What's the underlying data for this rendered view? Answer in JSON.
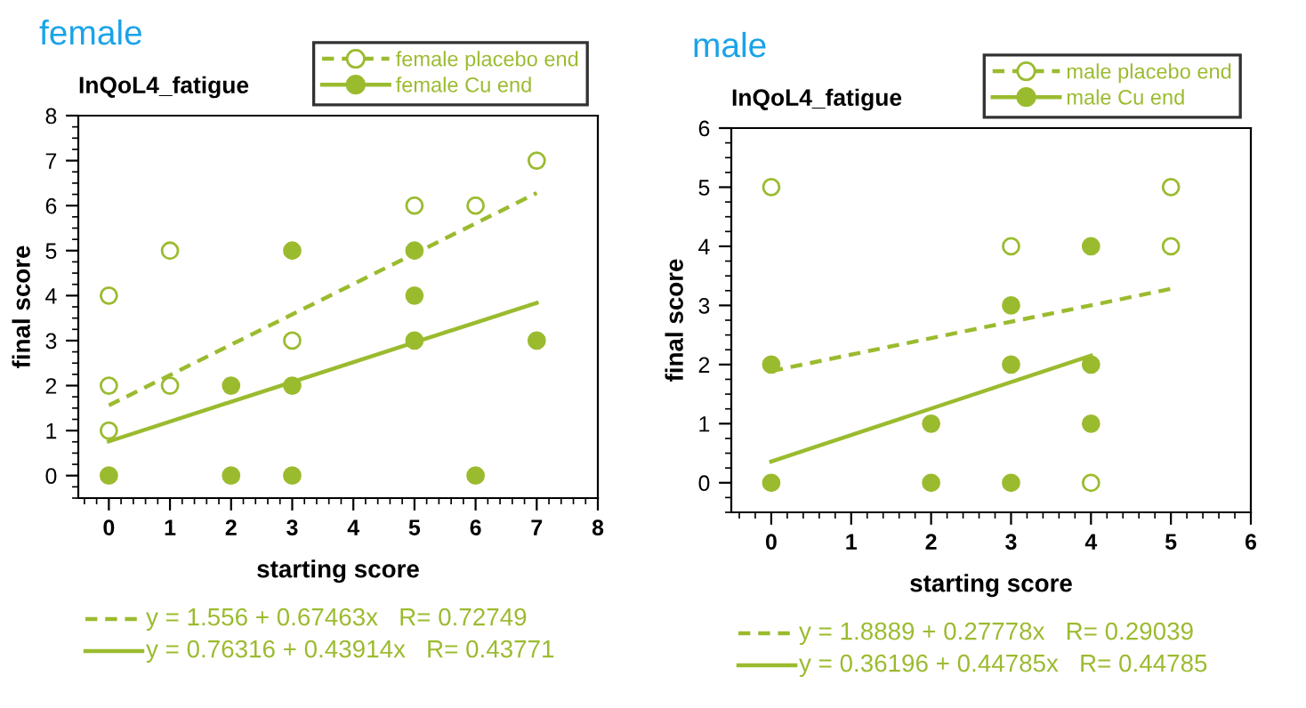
{
  "chart_data": [
    {
      "type": "scatter",
      "title": "female",
      "subtitle": "InQoL4_fatigue",
      "xlabel": "starting score",
      "ylabel": "final score",
      "xlim": [
        -0.5,
        8
      ],
      "ylim": [
        -0.5,
        8
      ],
      "xticks": [
        0,
        1,
        2,
        3,
        4,
        5,
        6,
        7,
        8
      ],
      "yticks": [
        0,
        1,
        2,
        3,
        4,
        5,
        6,
        7,
        8
      ],
      "grid": false,
      "legend": "top right",
      "series": [
        {
          "name": "female placebo end",
          "color": "#9bbb2f",
          "marker": "circle",
          "line_style": "dashed",
          "x": [
            0,
            0,
            0,
            1,
            1,
            3,
            5,
            6,
            7
          ],
          "values": [
            4,
            2,
            1,
            5,
            2,
            3,
            6,
            6,
            7
          ]
        },
        {
          "name": "female Cu end",
          "color": "#9bbb2f",
          "marker": "circle",
          "line_style": "solid",
          "x": [
            0,
            2,
            2,
            3,
            3,
            3,
            5,
            5,
            5,
            6,
            7
          ],
          "values": [
            0,
            2,
            0,
            5,
            2,
            0,
            5,
            4,
            3,
            0,
            3
          ]
        },
        {
          "type": "line",
          "color": "#9bbb2f",
          "line_style": "dashed",
          "x": [
            0,
            7
          ],
          "values": [
            1.56,
            6.28
          ]
        },
        {
          "type": "line",
          "color": "#9bbb2f",
          "line_style": "solid",
          "x": [
            0,
            7
          ],
          "values": [
            0.76,
            3.84
          ]
        }
      ],
      "annotations": [
        "y = 1.556 + 0.67463x   R= 0.72749",
        "y = 0.76316 + 0.43914x   R= 0.43771"
      ]
    },
    {
      "type": "scatter",
      "title": "male",
      "subtitle": "InQoL4_fatigue",
      "xlabel": "starting score",
      "ylabel": "final score",
      "xlim": [
        -0.5,
        6
      ],
      "ylim": [
        -0.5,
        6
      ],
      "xticks": [
        0,
        1,
        2,
        3,
        4,
        5,
        6
      ],
      "yticks": [
        0,
        1,
        2,
        3,
        4,
        5,
        6
      ],
      "grid": false,
      "legend": "top right",
      "series": [
        {
          "name": "male placebo end",
          "color": "#9bbb2f",
          "marker": "circle",
          "line_style": "dashed",
          "x": [
            0,
            3,
            4,
            5,
            5
          ],
          "values": [
            5,
            4,
            0,
            5,
            4
          ]
        },
        {
          "name": "male Cu end",
          "color": "#9bbb2f",
          "marker": "circle",
          "line_style": "solid",
          "x": [
            0,
            0,
            2,
            2,
            3,
            3,
            3,
            4,
            4,
            4
          ],
          "values": [
            2,
            0,
            1,
            0,
            3,
            2,
            0,
            4,
            2,
            1
          ]
        },
        {
          "type": "line",
          "color": "#9bbb2f",
          "line_style": "dashed",
          "x": [
            0,
            5
          ],
          "values": [
            1.89,
            3.28
          ]
        },
        {
          "type": "line",
          "color": "#9bbb2f",
          "line_style": "solid",
          "x": [
            0,
            4
          ],
          "values": [
            0.36,
            2.15
          ]
        }
      ],
      "annotations": [
        "y = 1.8889 + 0.27778x   R= 0.29039",
        "y = 0.36196 + 0.44785x   R= 0.44785"
      ]
    }
  ]
}
